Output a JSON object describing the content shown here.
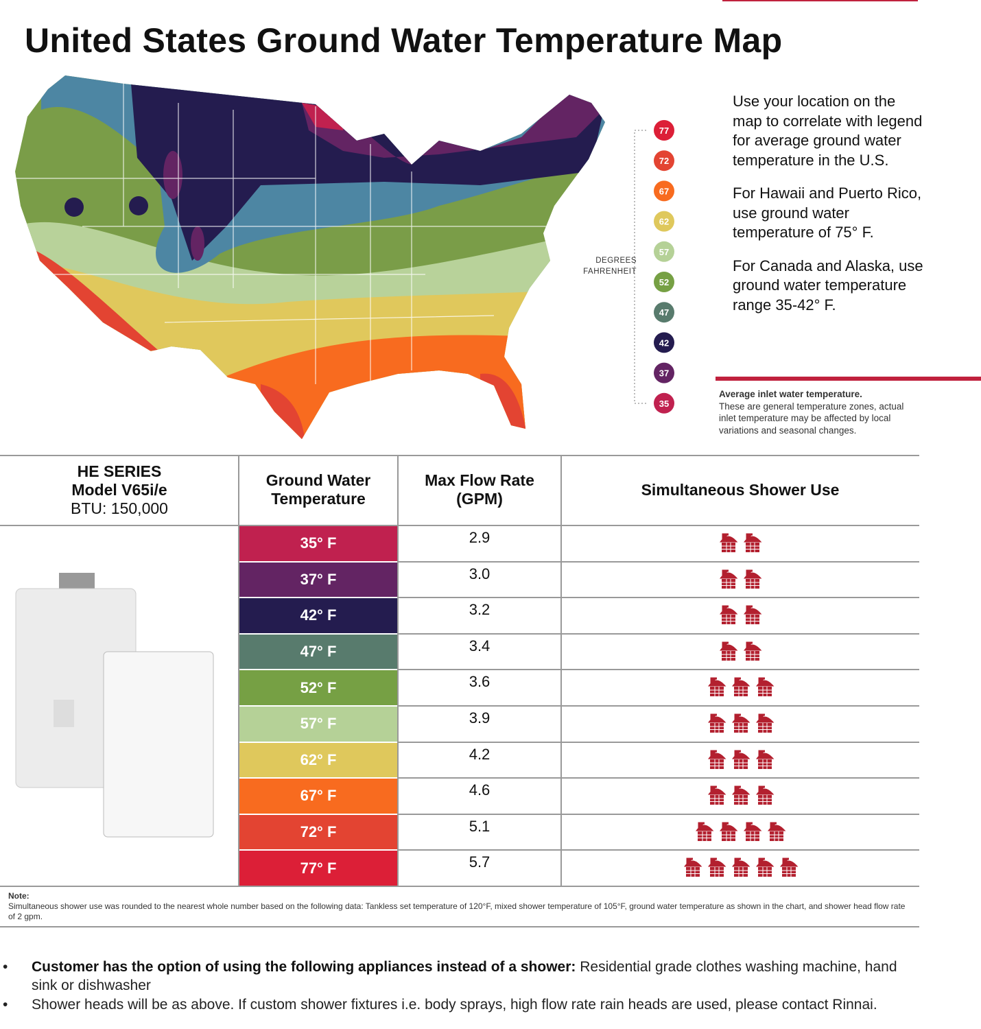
{
  "title": "United States Ground Water Temperature Map",
  "legend": {
    "label_lines": [
      "DEGREES",
      "FAHRENHEIT"
    ],
    "items": [
      {
        "value": 77,
        "color": "#dc1f37"
      },
      {
        "value": 72,
        "color": "#e34432"
      },
      {
        "value": 67,
        "color": "#f86b1f"
      },
      {
        "value": 62,
        "color": "#dfc85c"
      },
      {
        "value": 57,
        "color": "#b5d197"
      },
      {
        "value": 52,
        "color": "#76a044"
      },
      {
        "value": 47,
        "color": "#587b6d"
      },
      {
        "value": 42,
        "color": "#241c4f"
      },
      {
        "value": 37,
        "color": "#632463"
      },
      {
        "value": 35,
        "color": "#c0214f"
      }
    ]
  },
  "side_text": [
    "Use your location on the map to correlate with legend for average ground water temperature in the U.S.",
    "For Hawaii and Puerto Rico, use ground water temperature of 75° F.",
    "For Canada and Alaska, use ground water temperature range 35-42° F."
  ],
  "inlet_note": {
    "heading": "Average inlet water temperature.",
    "text": "These are general temperature zones, actual inlet temperature may be affected by local variations and seasonal changes."
  },
  "table": {
    "product": {
      "series": "HE SERIES",
      "model": "Model V65i/e",
      "btu": "BTU: 150,000"
    },
    "headers": [
      "Ground Water Temperature",
      "Max Flow Rate (GPM)",
      "Simultaneous Shower Use"
    ],
    "shower_color": "#b3202f",
    "rows": [
      {
        "temperature": "35° F",
        "color": "#c0214f",
        "flow": "2.9",
        "showers": 2
      },
      {
        "temperature": "37° F",
        "color": "#632463",
        "flow": "3.0",
        "showers": 2
      },
      {
        "temperature": "42° F",
        "color": "#241c4f",
        "flow": "3.2",
        "showers": 2
      },
      {
        "temperature": "47° F",
        "color": "#587b6d",
        "flow": "3.4",
        "showers": 2
      },
      {
        "temperature": "52° F",
        "color": "#76a044",
        "flow": "3.6",
        "showers": 3
      },
      {
        "temperature": "57° F",
        "color": "#b5d197",
        "flow": "3.9",
        "showers": 3
      },
      {
        "temperature": "62° F",
        "color": "#dfc85c",
        "flow": "4.2",
        "showers": 3
      },
      {
        "temperature": "67° F",
        "color": "#f86b1f",
        "flow": "4.6",
        "showers": 3
      },
      {
        "temperature": "72° F",
        "color": "#e34432",
        "flow": "5.1",
        "showers": 4
      },
      {
        "temperature": "77° F",
        "color": "#dc1f37",
        "flow": "5.7",
        "showers": 5
      }
    ]
  },
  "note": {
    "label": "Note:",
    "text": "Simultaneous shower use was rounded to the nearest whole number based on the following data: Tankless set temperature of 120°F, mixed shower temperature of 105°F, ground water temperature as shown in the chart, and shower head flow rate of 2 gpm."
  },
  "bullets": [
    {
      "bold": "Customer has the option of using the following appliances instead of a shower:",
      "text": " Residential grade clothes washing machine, hand sink or dishwasher"
    },
    {
      "text": "Shower heads will be as above. If custom shower fixtures  i.e. body sprays, high flow rate rain heads are used, please contact Rinnai."
    }
  ]
}
